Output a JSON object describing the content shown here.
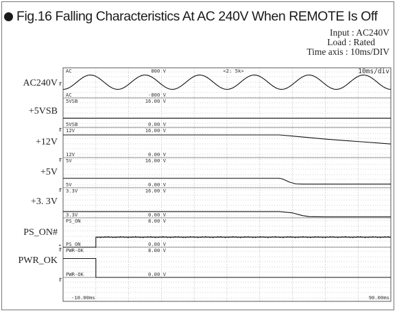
{
  "figure": {
    "title": "Fig.16  Falling Characteristics At AC 240V When REMOTE Is Off",
    "conditions": [
      {
        "key": "Input",
        "value": "AC240V"
      },
      {
        "key": "Load",
        "value": "Rated"
      },
      {
        "key": "Time axis",
        "value": "10ms/DIV"
      }
    ]
  },
  "scope": {
    "timebase": "10ms/div",
    "sample_rate": "<2: 5k>",
    "x_start_label": "-10.00ms",
    "x_end_label": "90.00ms"
  },
  "channels": [
    {
      "label": "AC240V",
      "tag": "AC",
      "top_value": "800 V",
      "bottom_tag": "AC",
      "bottom_value": "-800 V"
    },
    {
      "label": "+5VSB",
      "tag": "5VSB",
      "top_value": "16.00 V",
      "bottom_tag": "5VSB",
      "bottom_value": "0.00 V"
    },
    {
      "label": "+12V",
      "tag": "12V",
      "top_value": "16.00 V",
      "bottom_tag": "12V",
      "bottom_value": "0.00 V"
    },
    {
      "label": "+5V",
      "tag": "5V",
      "top_value": "16.00 V",
      "bottom_tag": "5V",
      "bottom_value": "0.00 V"
    },
    {
      "label": "+3. 3V",
      "tag": "3.3V",
      "top_value": "16.00 V",
      "bottom_tag": "3.3V",
      "bottom_value": "0.00 V"
    },
    {
      "label": "PS_ON#",
      "tag": "PS_ON",
      "top_value": "8.00 V",
      "bottom_tag": "PS_ON",
      "bottom_value": "0.00 V"
    },
    {
      "label": "PWR_OK",
      "tag": "PWR-OK",
      "top_value": "8.00 V",
      "bottom_tag": "PWR-OK",
      "bottom_value": "0.00 V"
    }
  ],
  "chart_data": {
    "type": "line",
    "title": "Fig.16  Falling Characteristics At AC 240V When REMOTE Is Off",
    "xlabel": "",
    "ylabel": "",
    "xlim": [
      -10,
      90
    ],
    "x_unit": "ms",
    "grid": true,
    "series": [
      {
        "name": "AC240V",
        "kind": "sine",
        "amplitude_div": 0.55,
        "period_ms": 16.67,
        "phase_deg": 270,
        "x": [
          -10,
          90
        ],
        "y_div": [
          0,
          0
        ]
      },
      {
        "name": "+5VSB",
        "x": [
          -10,
          90
        ],
        "y": [
          5.0,
          5.0
        ],
        "ylim": [
          0,
          16
        ]
      },
      {
        "name": "+12V",
        "x": [
          -10,
          0,
          30,
          56,
          60,
          70,
          80,
          90
        ],
        "y": [
          12.0,
          12.0,
          12.0,
          12.0,
          11.4,
          9.8,
          8.5,
          7.2
        ],
        "ylim": [
          0,
          16
        ]
      },
      {
        "name": "+5V",
        "x": [
          -10,
          0,
          30,
          56,
          57,
          59,
          61,
          63,
          90
        ],
        "y": [
          5.0,
          5.0,
          5.0,
          5.0,
          4.6,
          3.0,
          2.0,
          1.9,
          1.9
        ],
        "ylim": [
          0,
          16
        ]
      },
      {
        "name": "+3. 3V",
        "x": [
          -10,
          0,
          30,
          56,
          60,
          63,
          65,
          70,
          90
        ],
        "y": [
          3.3,
          3.3,
          3.3,
          3.3,
          2.6,
          1.2,
          0.6,
          0.5,
          0.5
        ],
        "ylim": [
          0,
          16
        ]
      },
      {
        "name": "PS_ON#",
        "x": [
          -10,
          0,
          0,
          90
        ],
        "y": [
          0.0,
          0.0,
          2.75,
          2.75
        ],
        "ylim": [
          0,
          8
        ]
      },
      {
        "name": "PWR_OK",
        "x": [
          -10,
          0,
          0,
          90
        ],
        "y": [
          5.0,
          5.0,
          0.0,
          0.0
        ],
        "ylim": [
          0,
          8
        ]
      }
    ]
  }
}
